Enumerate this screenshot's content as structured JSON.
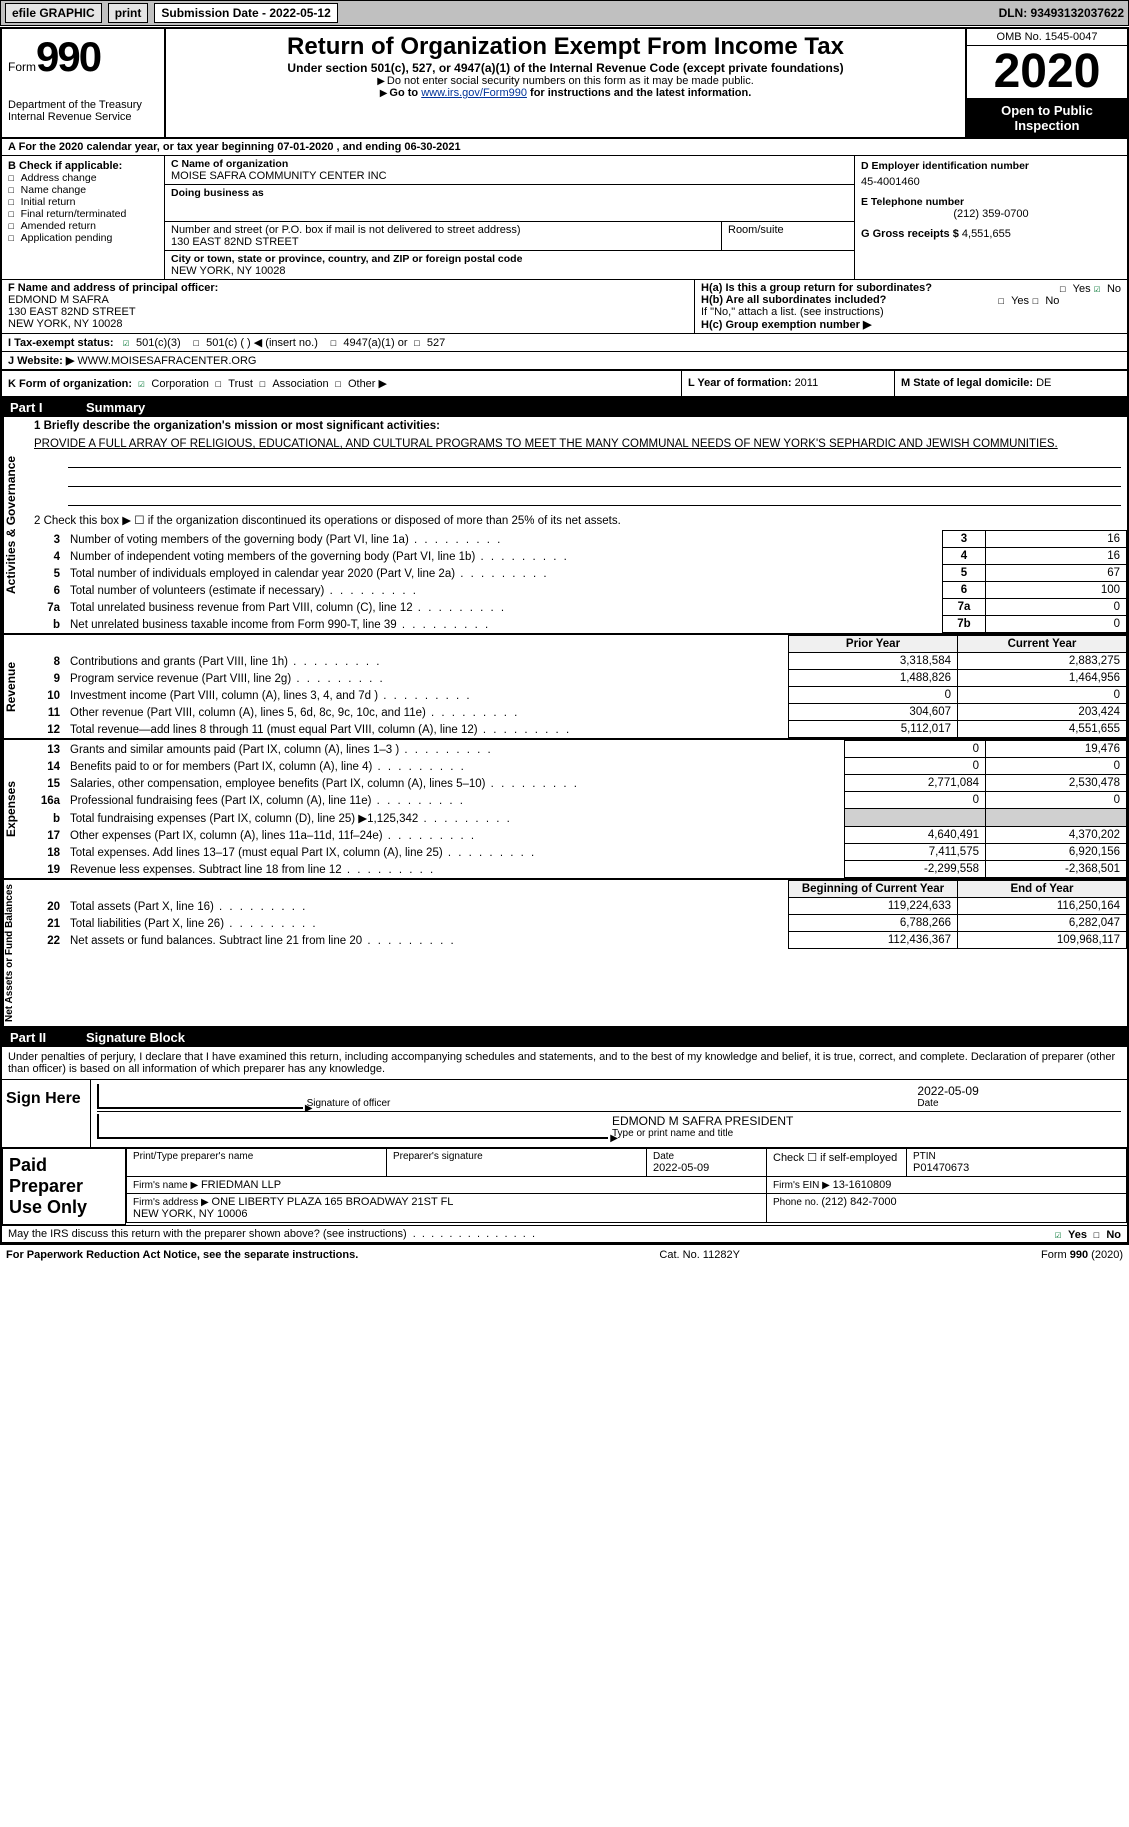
{
  "topbar": {
    "efile": "efile GRAPHIC",
    "print": "print",
    "subdate_label": "Submission Date - 2022-05-12",
    "dln": "DLN: 93493132037622"
  },
  "header": {
    "form_word": "Form",
    "form_num": "990",
    "dept": "Department of the Treasury\nInternal Revenue Service",
    "title": "Return of Organization Exempt From Income Tax",
    "sub": "Under section 501(c), 527, or 4947(a)(1) of the Internal Revenue Code (except private foundations)",
    "note1": "Do not enter social security numbers on this form as it may be made public.",
    "note2_pre": "Go to ",
    "note2_link": "www.irs.gov/Form990",
    "note2_post": " for instructions and the latest information.",
    "omb": "OMB No. 1545-0047",
    "year": "2020",
    "inspect": "Open to Public Inspection"
  },
  "period": "For the 2020 calendar year, or tax year beginning 07-01-2020   , and ending 06-30-2021",
  "b": {
    "hdr": "B Check if applicable:",
    "opts": [
      "Address change",
      "Name change",
      "Initial return",
      "Final return/terminated",
      "Amended return",
      "Application pending"
    ],
    "c_label": "C Name of organization",
    "c_val": "MOISE SAFRA COMMUNITY CENTER INC",
    "dba_label": "Doing business as",
    "dba_val": "",
    "addr_label": "Number and street (or P.O. box if mail is not delivered to street address)",
    "room_label": "Room/suite",
    "addr_val": "130 EAST 82ND STREET",
    "city_label": "City or town, state or province, country, and ZIP or foreign postal code",
    "city_val": "NEW YORK, NY  10028",
    "d_label": "D Employer identification number",
    "d_val": "45-4001460",
    "e_label": "E Telephone number",
    "e_val": "(212) 359-0700",
    "g_label": "G Gross receipts $ ",
    "g_val": "4,551,655"
  },
  "fgh": {
    "f_label": "F Name and address of principal officer:",
    "f_val": "EDMOND M SAFRA\n130 EAST 82ND STREET\nNEW YORK, NY  10028",
    "ha": "H(a)  Is this a group return for subordinates?",
    "ha_yes": "Yes",
    "ha_no": "No",
    "hb": "H(b)  Are all subordinates included?",
    "hb_yes": "Yes",
    "hb_no": "No",
    "hb_note": "If \"No,\" attach a list. (see instructions)",
    "hc": "H(c)  Group exemption number ▶"
  },
  "i": {
    "label": "I   Tax-exempt status:",
    "opts": [
      "501(c)(3)",
      "501(c) (  ) ◀ (insert no.)",
      "4947(a)(1) or",
      "527"
    ]
  },
  "j": {
    "label": "J   Website: ▶ ",
    "val": "WWW.MOISESAFRACENTER.ORG"
  },
  "k": {
    "label": "K Form of organization:",
    "opts": [
      "Corporation",
      "Trust",
      "Association",
      "Other ▶"
    ]
  },
  "l": {
    "label": "L Year of formation: ",
    "val": "2011"
  },
  "m": {
    "label": "M State of legal domicile: ",
    "val": "DE"
  },
  "part1": {
    "label": "Part I",
    "title": "Summary"
  },
  "summary": {
    "q1_label": "1   Briefly describe the organization's mission or most significant activities:",
    "q1_val": "PROVIDE A FULL ARRAY OF RELIGIOUS, EDUCATIONAL, AND CULTURAL PROGRAMS TO MEET THE MANY COMMUNAL NEEDS OF NEW YORK'S SEPHARDIC AND JEWISH COMMUNITIES.",
    "q2": "2   Check this box ▶ ☐  if the organization discontinued its operations or disposed of more than 25% of its net assets.",
    "lines_gov": [
      {
        "n": "3",
        "t": "Number of voting members of the governing body (Part VI, line 1a)",
        "box": "3",
        "v": "16"
      },
      {
        "n": "4",
        "t": "Number of independent voting members of the governing body (Part VI, line 1b)",
        "box": "4",
        "v": "16"
      },
      {
        "n": "5",
        "t": "Total number of individuals employed in calendar year 2020 (Part V, line 2a)",
        "box": "5",
        "v": "67"
      },
      {
        "n": "6",
        "t": "Total number of volunteers (estimate if necessary)",
        "box": "6",
        "v": "100"
      },
      {
        "n": "7a",
        "t": "Total unrelated business revenue from Part VIII, column (C), line 12",
        "box": "7a",
        "v": "0"
      },
      {
        "n": "b",
        "t": "Net unrelated business taxable income from Form 990-T, line 39",
        "box": "7b",
        "v": "0"
      }
    ],
    "col_prior": "Prior Year",
    "col_curr": "Current Year",
    "rev": [
      {
        "n": "8",
        "t": "Contributions and grants (Part VIII, line 1h)",
        "p": "3,318,584",
        "c": "2,883,275"
      },
      {
        "n": "9",
        "t": "Program service revenue (Part VIII, line 2g)",
        "p": "1,488,826",
        "c": "1,464,956"
      },
      {
        "n": "10",
        "t": "Investment income (Part VIII, column (A), lines 3, 4, and 7d )",
        "p": "0",
        "c": "0"
      },
      {
        "n": "11",
        "t": "Other revenue (Part VIII, column (A), lines 5, 6d, 8c, 9c, 10c, and 11e)",
        "p": "304,607",
        "c": "203,424"
      },
      {
        "n": "12",
        "t": "Total revenue—add lines 8 through 11 (must equal Part VIII, column (A), line 12)",
        "p": "5,112,017",
        "c": "4,551,655"
      }
    ],
    "exp": [
      {
        "n": "13",
        "t": "Grants and similar amounts paid (Part IX, column (A), lines 1–3 )",
        "p": "0",
        "c": "19,476"
      },
      {
        "n": "14",
        "t": "Benefits paid to or for members (Part IX, column (A), line 4)",
        "p": "0",
        "c": "0"
      },
      {
        "n": "15",
        "t": "Salaries, other compensation, employee benefits (Part IX, column (A), lines 5–10)",
        "p": "2,771,084",
        "c": "2,530,478"
      },
      {
        "n": "16a",
        "t": "Professional fundraising fees (Part IX, column (A), line 11e)",
        "p": "0",
        "c": "0"
      },
      {
        "n": "b",
        "t": "Total fundraising expenses (Part IX, column (D), line 25) ▶1,125,342",
        "p": "",
        "c": "",
        "grey": true
      },
      {
        "n": "17",
        "t": "Other expenses (Part IX, column (A), lines 11a–11d, 11f–24e)",
        "p": "4,640,491",
        "c": "4,370,202"
      },
      {
        "n": "18",
        "t": "Total expenses. Add lines 13–17 (must equal Part IX, column (A), line 25)",
        "p": "7,411,575",
        "c": "6,920,156"
      },
      {
        "n": "19",
        "t": "Revenue less expenses. Subtract line 18 from line 12",
        "p": "-2,299,558",
        "c": "-2,368,501"
      }
    ],
    "col_begin": "Beginning of Current Year",
    "col_end": "End of Year",
    "net": [
      {
        "n": "20",
        "t": "Total assets (Part X, line 16)",
        "p": "119,224,633",
        "c": "116,250,164"
      },
      {
        "n": "21",
        "t": "Total liabilities (Part X, line 26)",
        "p": "6,788,266",
        "c": "6,282,047"
      },
      {
        "n": "22",
        "t": "Net assets or fund balances. Subtract line 21 from line 20",
        "p": "112,436,367",
        "c": "109,968,117"
      }
    ]
  },
  "vtabs": {
    "gov": "Activities & Governance",
    "rev": "Revenue",
    "exp": "Expenses",
    "net": "Net Assets or Fund Balances"
  },
  "part2": {
    "label": "Part II",
    "title": "Signature Block"
  },
  "sig": {
    "penalty": "Under penalties of perjury, I declare that I have examined this return, including accompanying schedules and statements, and to the best of my knowledge and belief, it is true, correct, and complete. Declaration of preparer (other than officer) is based on all information of which preparer has any knowledge.",
    "sign_here": "Sign Here",
    "sig_officer": "Signature of officer",
    "date": "Date",
    "date_val": "2022-05-09",
    "name_val": "EDMOND M SAFRA  PRESIDENT",
    "name_lbl": "Type or print name and title"
  },
  "paid": {
    "title": "Paid Preparer Use Only",
    "c1": "Print/Type preparer's name",
    "c2": "Preparer's signature",
    "c3_lbl": "Date",
    "c3_val": "2022-05-09",
    "c4": "Check ☐ if self-employed",
    "c5_lbl": "PTIN",
    "c5_val": "P01470673",
    "firm_name_lbl": "Firm's name   ▶ ",
    "firm_name": "FRIEDMAN LLP",
    "firm_ein_lbl": "Firm's EIN ▶ ",
    "firm_ein": "13-1610809",
    "firm_addr_lbl": "Firm's address ▶ ",
    "firm_addr": "ONE LIBERTY PLAZA 165 BROADWAY 21ST FL\nNEW YORK, NY  10006",
    "phone_lbl": "Phone no. ",
    "phone": "(212) 842-7000"
  },
  "footer": {
    "discuss": "May the IRS discuss this return with the preparer shown above? (see instructions)",
    "yes": "Yes",
    "no": "No",
    "pra": "For Paperwork Reduction Act Notice, see the separate instructions.",
    "cat": "Cat. No. 11282Y",
    "form": "Form 990 (2020)"
  }
}
